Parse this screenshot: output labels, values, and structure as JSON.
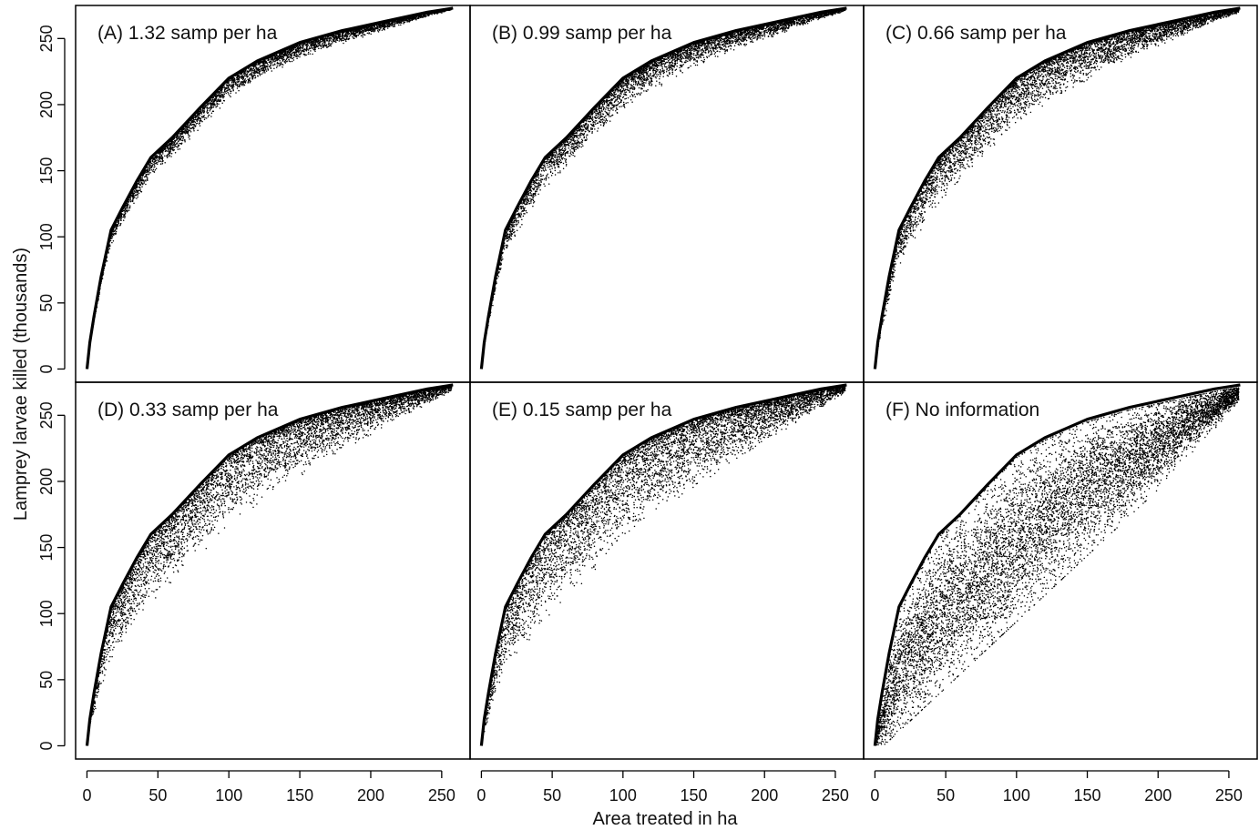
{
  "chart_data": {
    "type": "scatter",
    "xlabel": "Area treated in ha",
    "ylabel": "Lamprey larvae killed (thousands)",
    "xlim": [
      -8,
      270
    ],
    "ylim": [
      -10,
      275
    ],
    "xticks": [
      "0",
      "50",
      "100",
      "150",
      "200",
      "250"
    ],
    "yticks": [
      "0",
      "50",
      "100",
      "150",
      "200",
      "250"
    ],
    "xtick_values": [
      0,
      50,
      100,
      150,
      200,
      250
    ],
    "ytick_values": [
      0,
      50,
      100,
      150,
      200,
      250
    ],
    "grid": false,
    "layout": "2 rows x 3 columns, shared axes",
    "colors": {
      "points": "#000000",
      "frontier": "#000000",
      "frame": "#000000"
    },
    "optimal_frontier": {
      "x": [
        0,
        2,
        5,
        10,
        17,
        25,
        35,
        45,
        60,
        80,
        100,
        120,
        150,
        180,
        210,
        240,
        258
      ],
      "y": [
        0,
        20,
        40,
        70,
        105,
        122,
        142,
        160,
        175,
        198,
        220,
        233,
        247,
        256,
        263,
        270,
        273
      ]
    },
    "panels": [
      {
        "label": "(A) 1.32 samp per ha",
        "n_points": 6000,
        "spread": 0.12
      },
      {
        "label": "(B) 0.99 samp per ha",
        "n_points": 6000,
        "spread": 0.18
      },
      {
        "label": "(C) 0.66 samp per ha",
        "n_points": 6500,
        "spread": 0.27
      },
      {
        "label": "(D) 0.33 samp per ha",
        "n_points": 6500,
        "spread": 0.4
      },
      {
        "label": "(E) 0.15 samp per ha",
        "n_points": 7000,
        "spread": 0.5
      },
      {
        "label": "(F) No information",
        "n_points": 9000,
        "spread": 1.0
      }
    ]
  }
}
